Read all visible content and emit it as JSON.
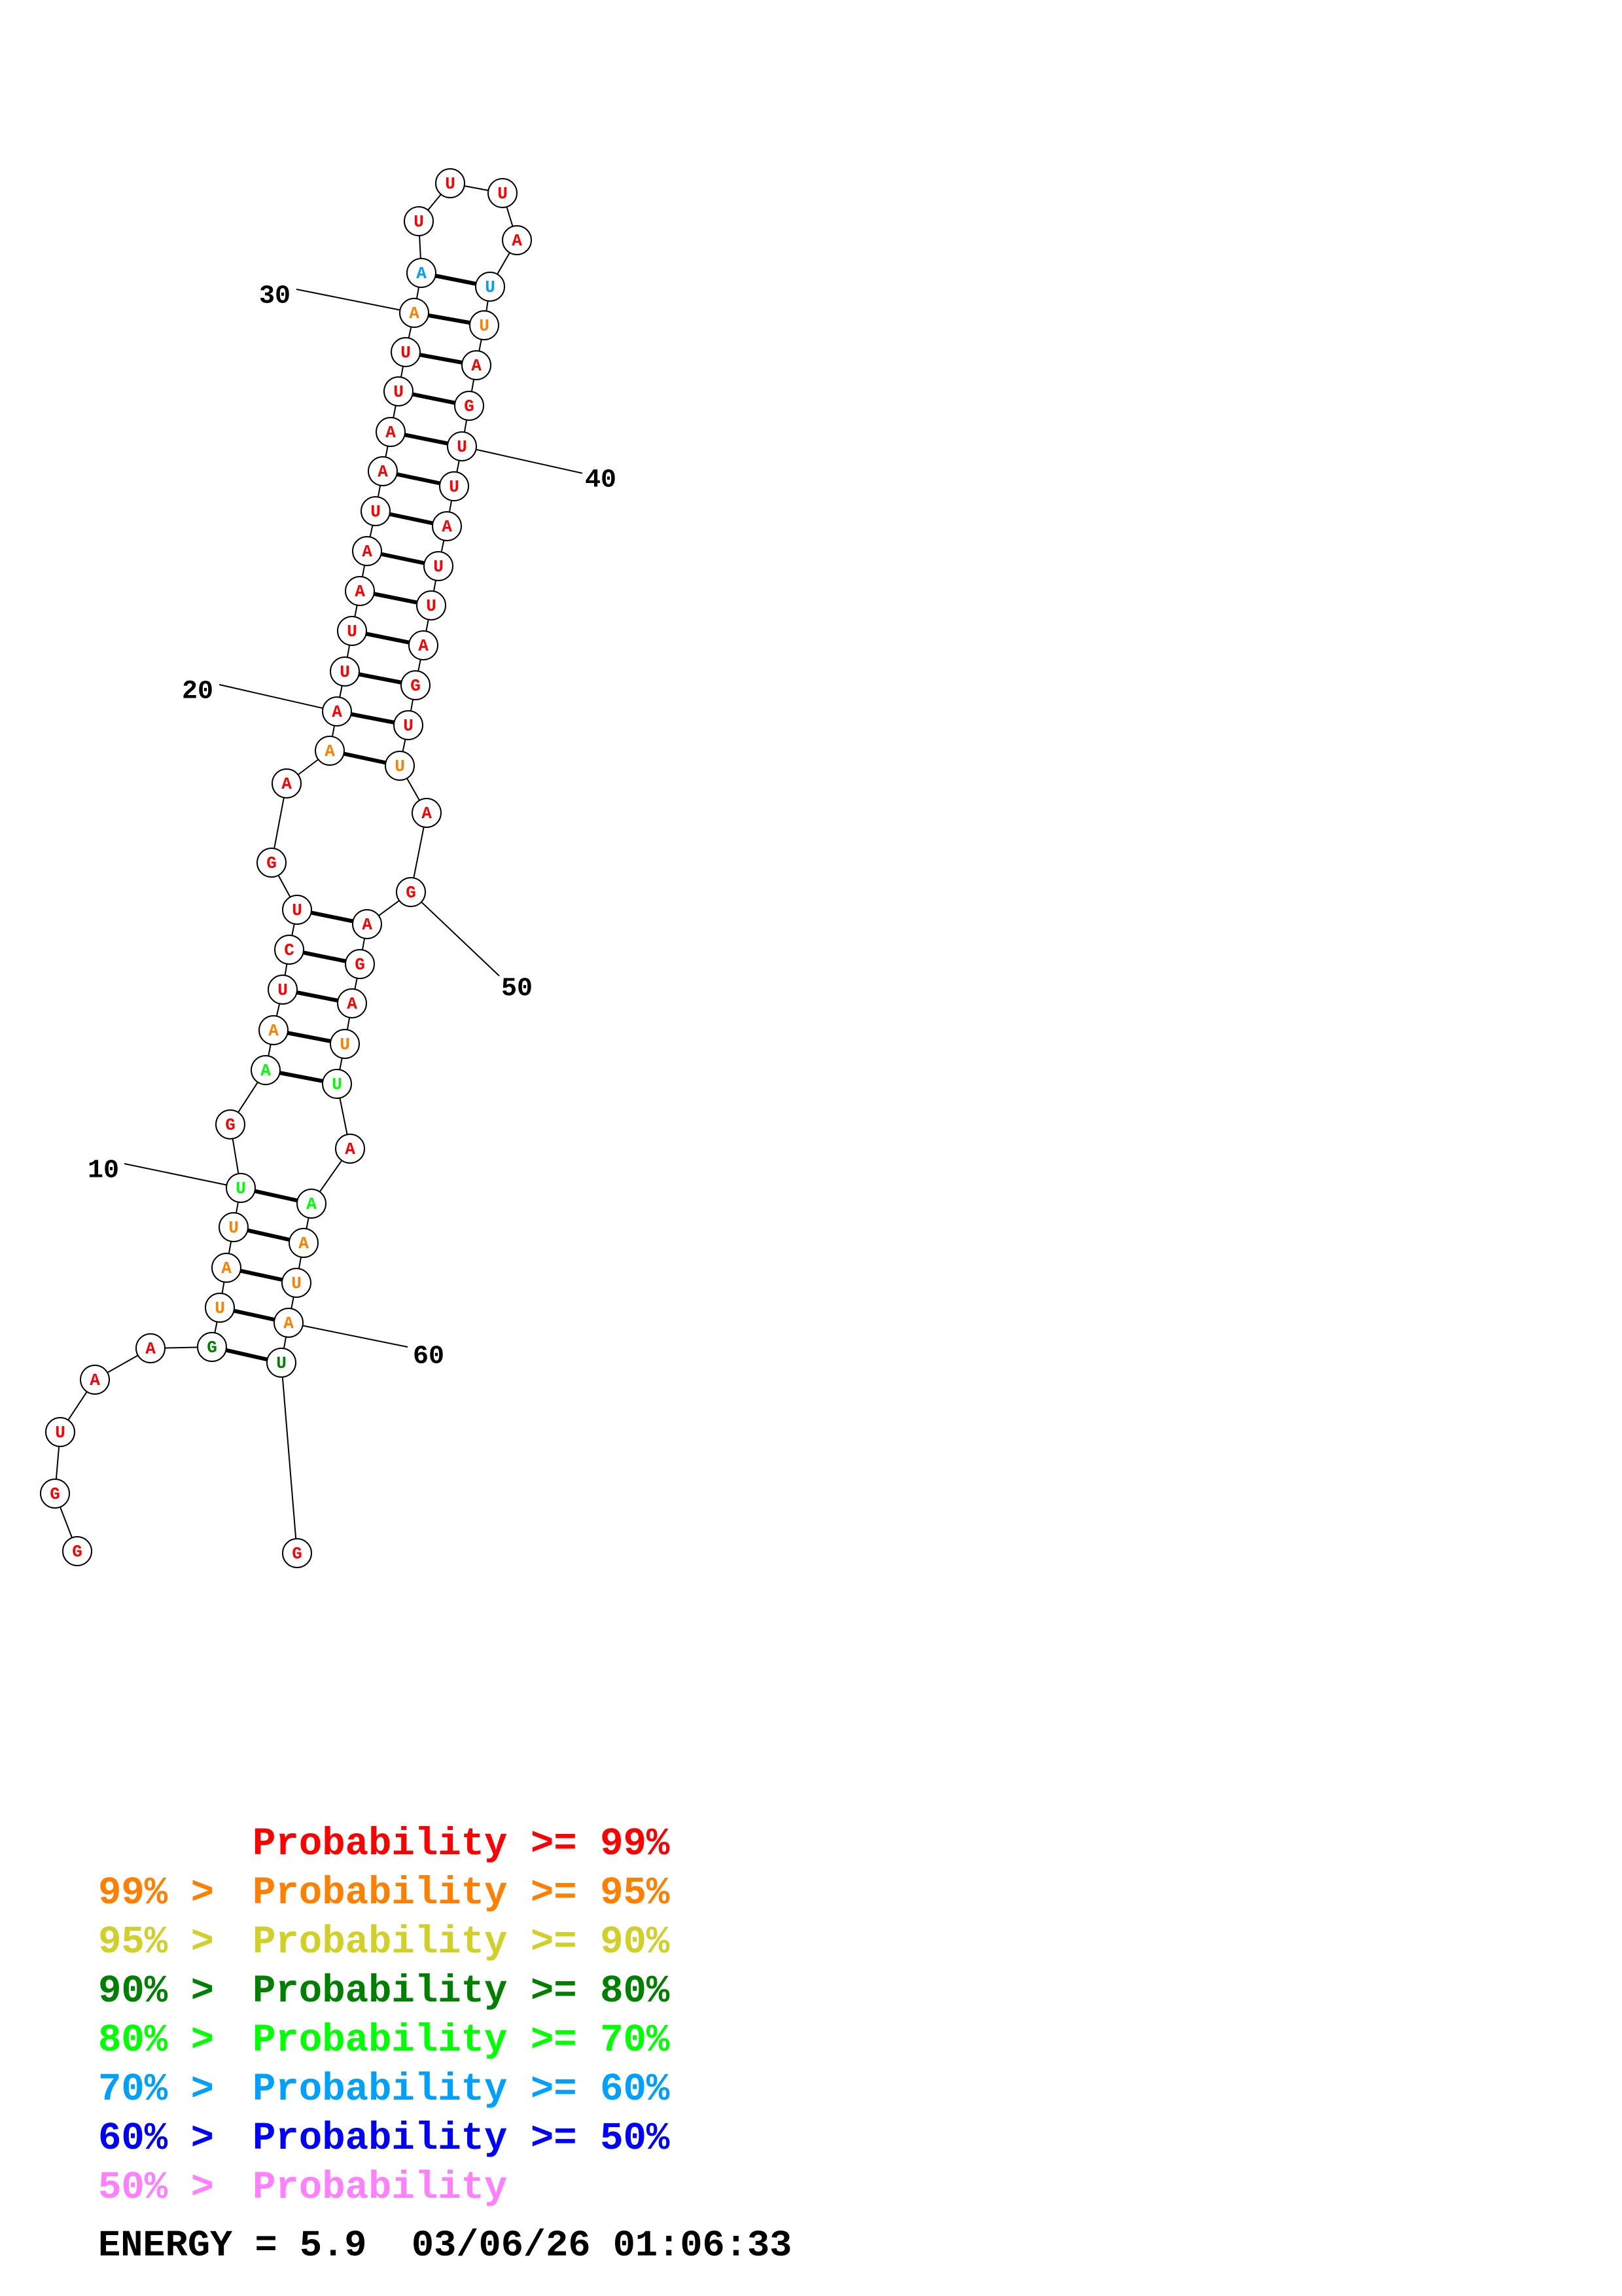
{
  "colors": {
    "p99": "#ff0000",
    "p95": "#ff8000",
    "p90": "#d0d028",
    "p80": "#008000",
    "p70": "#00ff00",
    "p60": "#00a0ff",
    "p50": "#0000ff",
    "plow": "#ff80ff"
  },
  "sequence": [
    {
      "n": 1,
      "base": "G",
      "c": "p99"
    },
    {
      "n": 2,
      "base": "G",
      "c": "p99"
    },
    {
      "n": 3,
      "base": "U",
      "c": "p99"
    },
    {
      "n": 4,
      "base": "A",
      "c": "p99"
    },
    {
      "n": 5,
      "base": "A",
      "c": "p99"
    },
    {
      "n": 6,
      "base": "G",
      "c": "p80"
    },
    {
      "n": 7,
      "base": "U",
      "c": "p95"
    },
    {
      "n": 8,
      "base": "A",
      "c": "p95"
    },
    {
      "n": 9,
      "base": "U",
      "c": "p95"
    },
    {
      "n": 10,
      "base": "U",
      "c": "p70"
    },
    {
      "n": 11,
      "base": "G",
      "c": "p99"
    },
    {
      "n": 12,
      "base": "A",
      "c": "p70"
    },
    {
      "n": 13,
      "base": "A",
      "c": "p95"
    },
    {
      "n": 14,
      "base": "U",
      "c": "p99"
    },
    {
      "n": 15,
      "base": "C",
      "c": "p99"
    },
    {
      "n": 16,
      "base": "U",
      "c": "p99"
    },
    {
      "n": 17,
      "base": "G",
      "c": "p99"
    },
    {
      "n": 18,
      "base": "A",
      "c": "p99"
    },
    {
      "n": 19,
      "base": "A",
      "c": "p95"
    },
    {
      "n": 20,
      "base": "A",
      "c": "p99"
    },
    {
      "n": 21,
      "base": "U",
      "c": "p99"
    },
    {
      "n": 22,
      "base": "U",
      "c": "p99"
    },
    {
      "n": 23,
      "base": "A",
      "c": "p99"
    },
    {
      "n": 24,
      "base": "A",
      "c": "p99"
    },
    {
      "n": 25,
      "base": "U",
      "c": "p99"
    },
    {
      "n": 26,
      "base": "A",
      "c": "p99"
    },
    {
      "n": 27,
      "base": "A",
      "c": "p99"
    },
    {
      "n": 28,
      "base": "U",
      "c": "p99"
    },
    {
      "n": 29,
      "base": "U",
      "c": "p99"
    },
    {
      "n": 30,
      "base": "A",
      "c": "p95"
    },
    {
      "n": 31,
      "base": "A",
      "c": "p60"
    },
    {
      "n": 32,
      "base": "U",
      "c": "p99"
    },
    {
      "n": 33,
      "base": "U",
      "c": "p99"
    },
    {
      "n": 34,
      "base": "U",
      "c": "p99"
    },
    {
      "n": 35,
      "base": "A",
      "c": "p99"
    },
    {
      "n": 36,
      "base": "U",
      "c": "p60"
    },
    {
      "n": 37,
      "base": "U",
      "c": "p95"
    },
    {
      "n": 38,
      "base": "A",
      "c": "p99"
    },
    {
      "n": 39,
      "base": "G",
      "c": "p99"
    },
    {
      "n": 40,
      "base": "U",
      "c": "p99"
    },
    {
      "n": 41,
      "base": "U",
      "c": "p99"
    },
    {
      "n": 42,
      "base": "A",
      "c": "p99"
    },
    {
      "n": 43,
      "base": "U",
      "c": "p99"
    },
    {
      "n": 44,
      "base": "U",
      "c": "p99"
    },
    {
      "n": 45,
      "base": "A",
      "c": "p99"
    },
    {
      "n": 46,
      "base": "G",
      "c": "p99"
    },
    {
      "n": 47,
      "base": "U",
      "c": "p99"
    },
    {
      "n": 48,
      "base": "U",
      "c": "p95"
    },
    {
      "n": 49,
      "base": "A",
      "c": "p99"
    },
    {
      "n": 50,
      "base": "G",
      "c": "p99"
    },
    {
      "n": 51,
      "base": "A",
      "c": "p99"
    },
    {
      "n": 52,
      "base": "G",
      "c": "p99"
    },
    {
      "n": 53,
      "base": "A",
      "c": "p99"
    },
    {
      "n": 54,
      "base": "U",
      "c": "p95"
    },
    {
      "n": 55,
      "base": "U",
      "c": "p70"
    },
    {
      "n": 56,
      "base": "A",
      "c": "p99"
    },
    {
      "n": 57,
      "base": "A",
      "c": "p70"
    },
    {
      "n": 58,
      "base": "A",
      "c": "p95"
    },
    {
      "n": 59,
      "base": "U",
      "c": "p95"
    },
    {
      "n": 60,
      "base": "A",
      "c": "p95"
    },
    {
      "n": 61,
      "base": "U",
      "c": "p80"
    },
    {
      "n": 62,
      "base": "G",
      "c": "p99"
    }
  ],
  "pairs": [
    [
      6,
      61
    ],
    [
      7,
      60
    ],
    [
      8,
      59
    ],
    [
      9,
      58
    ],
    [
      10,
      57
    ],
    [
      12,
      55
    ],
    [
      13,
      54
    ],
    [
      14,
      53
    ],
    [
      15,
      52
    ],
    [
      16,
      51
    ],
    [
      19,
      48
    ],
    [
      20,
      47
    ],
    [
      21,
      46
    ],
    [
      22,
      45
    ],
    [
      23,
      44
    ],
    [
      24,
      43
    ],
    [
      25,
      42
    ],
    [
      26,
      41
    ],
    [
      27,
      40
    ],
    [
      28,
      39
    ],
    [
      29,
      38
    ],
    [
      30,
      37
    ],
    [
      31,
      36
    ]
  ],
  "position_labels": [
    {
      "n": 10,
      "text": "10"
    },
    {
      "n": 20,
      "text": "20"
    },
    {
      "n": 30,
      "text": "30"
    },
    {
      "n": 40,
      "text": "40"
    },
    {
      "n": 50,
      "text": "50"
    },
    {
      "n": 60,
      "text": "60"
    }
  ],
  "legend": [
    {
      "prefix": "    ",
      "label": "Probability >= 99%",
      "color": "p99"
    },
    {
      "prefix": "99% > ",
      "label": "Probability >= 95%",
      "color": "p95"
    },
    {
      "prefix": "95% > ",
      "label": "Probability >= 90%",
      "color": "p90"
    },
    {
      "prefix": "90% > ",
      "label": "Probability >= 80%",
      "color": "p80"
    },
    {
      "prefix": "80% > ",
      "label": "Probability >= 70%",
      "color": "p70"
    },
    {
      "prefix": "70% > ",
      "label": "Probability >= 60%",
      "color": "p60"
    },
    {
      "prefix": "60% > ",
      "label": "Probability >= 50%",
      "color": "p50"
    },
    {
      "prefix": "50% > ",
      "label": "Probability",
      "color": "plow"
    }
  ],
  "footer": {
    "energy": "ENERGY = 5.9  03/06/26 01:06:33"
  }
}
